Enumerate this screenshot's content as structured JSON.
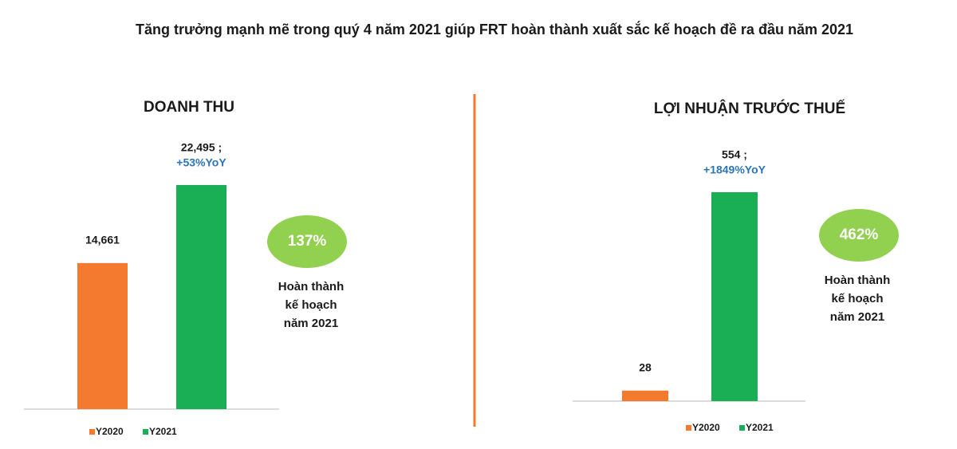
{
  "title": "Tăng trưởng mạnh mẽ trong quý 4 năm 2021 giúp FRT hoàn thành xuất sắc kế hoạch đề ra đầu năm 2021",
  "chart_data": [
    {
      "type": "bar",
      "title": "DOANH THU",
      "series": [
        {
          "name": "Y2020",
          "color": "#f47a30",
          "values": [
            14661
          ],
          "value_labels": [
            "14,661"
          ]
        },
        {
          "name": "Y2021",
          "color": "#1aaf54",
          "values": [
            22495
          ],
          "value_labels": [
            "22,495 ;"
          ]
        }
      ],
      "annotations": {
        "yoy": "+53%YoY",
        "badge": "137%",
        "note": [
          "Hoàn thành",
          "kế hoạch",
          "năm 2021"
        ]
      }
    },
    {
      "type": "bar",
      "title": "LỢI NHUẬN TRƯỚC THUẾ",
      "series": [
        {
          "name": "Y2020",
          "color": "#f47a30",
          "values": [
            28
          ],
          "value_labels": [
            "28"
          ]
        },
        {
          "name": "Y2021",
          "color": "#1aaf54",
          "values": [
            554
          ],
          "value_labels": [
            "554 ;"
          ]
        }
      ],
      "annotations": {
        "yoy": "+1849%YoY",
        "badge": "462%",
        "note": [
          "Hoàn thành",
          "kế hoạch",
          "năm 2021"
        ]
      }
    }
  ]
}
